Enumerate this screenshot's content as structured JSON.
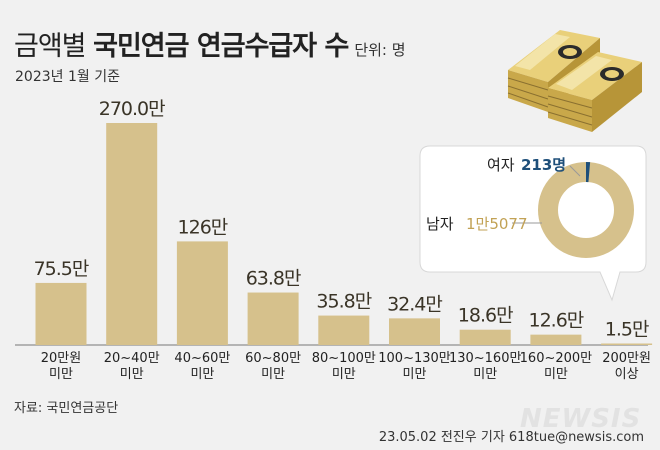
{
  "title": {
    "prefix": "금액별",
    "bold": "국민연금  연금수급자 수",
    "unit": "단위: 명"
  },
  "subtitle": "2023년 1월 기준",
  "source": "자료: 국민연금공단",
  "credit": "23.05.02 전진우 기자 618tue@newsis.com",
  "watermark": "NEWSIS",
  "colors": {
    "bar": "#d6c18c",
    "value_text": "#3a3427",
    "donut_female": "#1e4f7a",
    "female_text": "#1e4f7a",
    "male_text": "#c2a255"
  },
  "chart_data": [
    {
      "type": "bar",
      "title": "금액별 국민연금 연금수급자 수",
      "unit": "명",
      "categories": [
        [
          "20만원",
          "미만"
        ],
        [
          "20~40만",
          "미만"
        ],
        [
          "40~60만",
          "미만"
        ],
        [
          "60~80만",
          "미만"
        ],
        [
          "80~100만",
          "미만"
        ],
        [
          "100~130만",
          "미만"
        ],
        [
          "130~160만",
          "미만"
        ],
        [
          "160~200만",
          "미만"
        ],
        [
          "200만원",
          "이상"
        ]
      ],
      "values": [
        75.5,
        270.0,
        126,
        63.8,
        35.8,
        32.4,
        18.6,
        12.6,
        1.5
      ],
      "value_labels": [
        "75.5만",
        "270.0만",
        "126만",
        "63.8만",
        "35.8만",
        "32.4만",
        "18.6만",
        "12.6만",
        "1.5만"
      ],
      "ylim": [
        0,
        270
      ]
    },
    {
      "type": "pie",
      "subject": "200만원 이상 수급자 성별",
      "slices": [
        {
          "name": "여자",
          "label": "213명",
          "value": 213
        },
        {
          "name": "남자",
          "label": "1만5077",
          "value": 15077
        }
      ]
    }
  ]
}
